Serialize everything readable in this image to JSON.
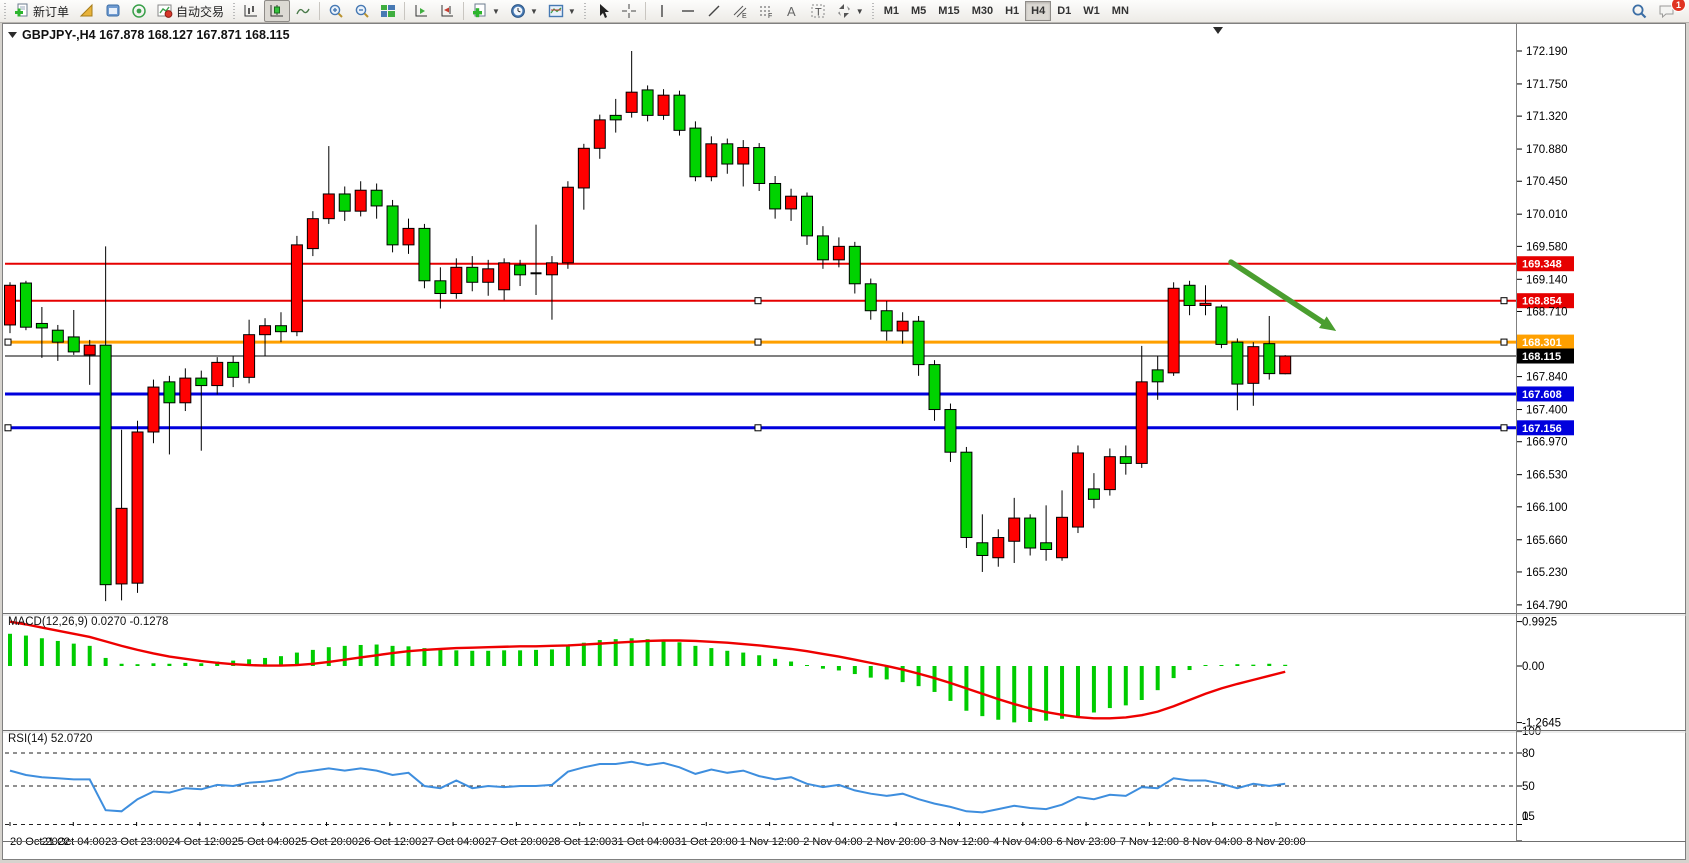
{
  "toolbar": {
    "new_order_label": "新订单",
    "auto_trading_label": "自动交易",
    "icons": [
      "new-order-icon",
      "market-watch-icon",
      "navigator-icon",
      "signals-icon",
      "auto-trading-icon",
      "bar-chart-icon",
      "candle-chart-icon",
      "line-chart-icon",
      "zoom-in-icon",
      "zoom-out-icon",
      "tile-windows-icon",
      "auto-scroll-icon",
      "chart-shift-icon",
      "indicators-icon",
      "periods-clock-icon",
      "templates-icon",
      "cursor-icon",
      "crosshair-icon",
      "vertical-line-icon",
      "horizontal-line-icon",
      "trendline-icon",
      "channel-icon",
      "fibonacci-icon",
      "text-icon",
      "label-icon",
      "arrows-icon",
      "search-icon",
      "chat-icon"
    ],
    "timeframes": [
      "M1",
      "M5",
      "M15",
      "M30",
      "H1",
      "H4",
      "D1",
      "W1",
      "MN"
    ],
    "active_timeframe": "H4",
    "chat_badge": "1"
  },
  "chart": {
    "title": "GBPJPY-,H4  167.878 168.127 167.871 168.115",
    "symbol": "GBPJPY-",
    "period": "H4",
    "open": "167.878",
    "high": "168.127",
    "low": "167.871",
    "close": "168.115"
  },
  "chart_data": {
    "type": "candlestick",
    "symbol": "GBPJPY-",
    "timeframe": "H4",
    "bull_color": "#ff0000",
    "bear_color": "#00d300",
    "outline_color": "#000000",
    "price_axis_ticks": [
      172.19,
      171.75,
      171.32,
      170.88,
      170.45,
      170.01,
      169.58,
      169.14,
      168.71,
      167.84,
      167.4,
      166.97,
      166.53,
      166.1,
      165.66,
      165.23,
      164.79
    ],
    "candles": [
      [
        168.53,
        169.1,
        168.42,
        169.06
      ],
      [
        169.09,
        169.12,
        168.46,
        168.5
      ],
      [
        168.55,
        168.77,
        168.09,
        168.49
      ],
      [
        168.46,
        168.53,
        168.05,
        168.3
      ],
      [
        168.37,
        168.73,
        168.13,
        168.17
      ],
      [
        168.13,
        168.33,
        167.73,
        168.26
      ],
      [
        168.26,
        169.58,
        164.84,
        165.06
      ],
      [
        165.07,
        167.13,
        164.85,
        166.08
      ],
      [
        165.08,
        167.25,
        164.95,
        167.1
      ],
      [
        167.1,
        167.8,
        166.95,
        167.7
      ],
      [
        167.77,
        167.85,
        166.8,
        167.49
      ],
      [
        167.49,
        167.95,
        167.38,
        167.82
      ],
      [
        167.82,
        167.92,
        166.85,
        167.72
      ],
      [
        167.72,
        168.1,
        167.6,
        168.03
      ],
      [
        168.03,
        168.12,
        167.7,
        167.83
      ],
      [
        167.83,
        168.6,
        167.75,
        168.4
      ],
      [
        168.4,
        168.62,
        168.12,
        168.52
      ],
      [
        168.52,
        168.7,
        168.3,
        168.44
      ],
      [
        168.44,
        169.72,
        168.38,
        169.6
      ],
      [
        169.55,
        170.05,
        169.45,
        169.95
      ],
      [
        169.95,
        170.92,
        169.88,
        170.28
      ],
      [
        170.28,
        170.38,
        169.92,
        170.05
      ],
      [
        170.05,
        170.45,
        169.98,
        170.33
      ],
      [
        170.33,
        170.42,
        169.95,
        170.12
      ],
      [
        170.12,
        170.2,
        169.5,
        169.6
      ],
      [
        169.6,
        169.95,
        169.48,
        169.82
      ],
      [
        169.82,
        169.88,
        169.02,
        169.12
      ],
      [
        169.12,
        169.3,
        168.75,
        168.95
      ],
      [
        168.95,
        169.42,
        168.88,
        169.3
      ],
      [
        169.3,
        169.45,
        168.98,
        169.1
      ],
      [
        169.1,
        169.4,
        168.92,
        169.28
      ],
      [
        169.0,
        169.42,
        168.86,
        169.36
      ],
      [
        169.33,
        169.4,
        169.05,
        169.2
      ],
      [
        169.22,
        169.87,
        168.93,
        169.2
      ],
      [
        169.2,
        169.45,
        168.6,
        169.36
      ],
      [
        169.36,
        170.45,
        169.28,
        170.37
      ],
      [
        170.36,
        170.95,
        170.07,
        170.89
      ],
      [
        170.89,
        171.34,
        170.75,
        171.27
      ],
      [
        171.33,
        171.55,
        171.1,
        171.27
      ],
      [
        171.37,
        172.19,
        171.3,
        171.64
      ],
      [
        171.67,
        171.73,
        171.25,
        171.33
      ],
      [
        171.33,
        171.68,
        171.27,
        171.6
      ],
      [
        171.6,
        171.66,
        171.06,
        171.13
      ],
      [
        171.16,
        171.25,
        170.45,
        170.51
      ],
      [
        170.51,
        171.05,
        170.45,
        170.95
      ],
      [
        170.95,
        171.02,
        170.55,
        170.68
      ],
      [
        170.68,
        171.0,
        170.38,
        170.9
      ],
      [
        170.9,
        170.96,
        170.32,
        170.42
      ],
      [
        170.42,
        170.52,
        169.95,
        170.08
      ],
      [
        170.08,
        170.35,
        169.92,
        170.25
      ],
      [
        170.25,
        170.3,
        169.6,
        169.72
      ],
      [
        169.72,
        169.85,
        169.28,
        169.4
      ],
      [
        169.4,
        169.7,
        169.3,
        169.58
      ],
      [
        169.58,
        169.64,
        168.95,
        169.08
      ],
      [
        169.08,
        169.15,
        168.6,
        168.72
      ],
      [
        168.72,
        168.85,
        168.32,
        168.45
      ],
      [
        168.45,
        168.7,
        168.28,
        168.58
      ],
      [
        168.58,
        168.65,
        167.85,
        168.0
      ],
      [
        168.0,
        168.06,
        167.25,
        167.4
      ],
      [
        167.4,
        167.48,
        166.7,
        166.83
      ],
      [
        166.83,
        166.9,
        165.55,
        165.69
      ],
      [
        165.62,
        166.0,
        165.23,
        165.45
      ],
      [
        165.42,
        165.8,
        165.3,
        165.69
      ],
      [
        165.64,
        166.22,
        165.35,
        165.95
      ],
      [
        165.95,
        166.0,
        165.45,
        165.55
      ],
      [
        165.62,
        166.12,
        165.38,
        165.53
      ],
      [
        165.42,
        166.32,
        165.38,
        165.96
      ],
      [
        165.83,
        166.92,
        165.75,
        166.82
      ],
      [
        166.34,
        166.55,
        166.08,
        166.2
      ],
      [
        166.33,
        166.88,
        166.25,
        166.77
      ],
      [
        166.77,
        166.92,
        166.53,
        166.68
      ],
      [
        166.68,
        168.25,
        166.62,
        167.77
      ],
      [
        167.93,
        168.12,
        167.53,
        167.77
      ],
      [
        167.89,
        169.1,
        167.85,
        169.02
      ],
      [
        169.06,
        169.12,
        168.66,
        168.79
      ],
      [
        168.79,
        169.06,
        168.66,
        168.82
      ],
      [
        168.77,
        168.8,
        168.22,
        168.27
      ],
      [
        168.3,
        168.35,
        167.39,
        167.74
      ],
      [
        167.75,
        168.3,
        167.45,
        168.24
      ],
      [
        168.28,
        168.65,
        167.8,
        167.88
      ],
      [
        167.878,
        168.127,
        167.871,
        168.115
      ]
    ],
    "hlines": [
      {
        "price": 169.348,
        "color": "#e60000",
        "width": 2,
        "tag": "169.348",
        "selected": false
      },
      {
        "price": 168.854,
        "color": "#e60000",
        "width": 2,
        "tag": "168.854",
        "selected": true
      },
      {
        "price": 168.301,
        "color": "#ffa000",
        "width": 3,
        "tag": "168.301",
        "selected": true
      },
      {
        "price": 168.115,
        "color": "#000000",
        "width": 1,
        "tag": "168.115",
        "selected": false
      },
      {
        "price": 167.608,
        "color": "#0000dd",
        "width": 3,
        "tag": "167.608",
        "selected": false
      },
      {
        "price": 167.156,
        "color": "#0000dd",
        "width": 3,
        "tag": "167.156",
        "selected": true
      }
    ],
    "current_price": 168.115,
    "arrow_annotation": {
      "from_index": 76.6,
      "from_price": 169.37,
      "to_index": 83.2,
      "to_price": 168.45,
      "color": "#4a9e2f"
    },
    "macd": {
      "label": "MACD(12,26,9) 0.0270 -0.1278",
      "params": "12,26,9",
      "value": 0.027,
      "signal_value": -0.1278,
      "axis_labels": [
        0.9925,
        0.0,
        -1.2645
      ],
      "histogram_color": "#00cc00",
      "signal_color": "#ee0000",
      "histogram": [
        0.72,
        0.68,
        0.62,
        0.56,
        0.5,
        0.45,
        0.18,
        0.05,
        0.04,
        0.06,
        0.05,
        0.07,
        0.06,
        0.1,
        0.12,
        0.15,
        0.18,
        0.22,
        0.3,
        0.36,
        0.42,
        0.45,
        0.47,
        0.48,
        0.45,
        0.44,
        0.4,
        0.36,
        0.35,
        0.34,
        0.34,
        0.35,
        0.35,
        0.36,
        0.37,
        0.44,
        0.52,
        0.58,
        0.6,
        0.62,
        0.6,
        0.58,
        0.53,
        0.45,
        0.4,
        0.34,
        0.3,
        0.24,
        0.16,
        0.1,
        0.02,
        -0.06,
        -0.1,
        -0.18,
        -0.26,
        -0.3,
        -0.36,
        -0.45,
        -0.58,
        -0.78,
        -1.0,
        -1.12,
        -1.2,
        -1.26,
        -1.25,
        -1.22,
        -1.18,
        -1.12,
        -1.04,
        -0.94,
        -0.88,
        -0.76,
        -0.54,
        -0.27,
        -0.09,
        -0.02,
        0.02,
        0.04,
        0.03,
        0.05,
        0.027
      ],
      "signal": [
        0.99,
        0.93,
        0.86,
        0.79,
        0.72,
        0.65,
        0.55,
        0.45,
        0.36,
        0.28,
        0.21,
        0.16,
        0.11,
        0.07,
        0.04,
        0.02,
        0.01,
        0.01,
        0.02,
        0.05,
        0.09,
        0.14,
        0.19,
        0.24,
        0.29,
        0.33,
        0.36,
        0.38,
        0.4,
        0.41,
        0.42,
        0.43,
        0.44,
        0.44,
        0.45,
        0.46,
        0.48,
        0.5,
        0.52,
        0.54,
        0.56,
        0.57,
        0.57,
        0.56,
        0.54,
        0.52,
        0.49,
        0.46,
        0.42,
        0.38,
        0.33,
        0.27,
        0.21,
        0.14,
        0.07,
        0.0,
        -0.08,
        -0.17,
        -0.27,
        -0.38,
        -0.5,
        -0.62,
        -0.74,
        -0.85,
        -0.95,
        -1.03,
        -1.09,
        -1.14,
        -1.17,
        -1.17,
        -1.15,
        -1.1,
        -1.02,
        -0.9,
        -0.76,
        -0.62,
        -0.5,
        -0.4,
        -0.31,
        -0.22,
        -0.128
      ]
    },
    "rsi": {
      "label": "RSI(14) 52.0720",
      "period": 14,
      "value": 52.072,
      "line_color": "#3e8ede",
      "levels": [
        80,
        50,
        15
      ],
      "axis_labels": [
        100,
        80,
        50,
        15,
        0
      ],
      "values": [
        64,
        60,
        58,
        57,
        56,
        56,
        28,
        27,
        38,
        45,
        44,
        48,
        47,
        51,
        50,
        53,
        54,
        56,
        62,
        64,
        66,
        64,
        66,
        64,
        60,
        62,
        50,
        48,
        55,
        48,
        50,
        49,
        50,
        50,
        51,
        63,
        67,
        70,
        70,
        72,
        69,
        71,
        67,
        61,
        65,
        62,
        64,
        59,
        56,
        58,
        52,
        49,
        51,
        46,
        43,
        41,
        43,
        38,
        34,
        31,
        27,
        26,
        29,
        32,
        30,
        29,
        33,
        40,
        38,
        42,
        41,
        49,
        48,
        57,
        55,
        55,
        52,
        48,
        52,
        50,
        52.07
      ]
    },
    "x_labels": [
      "20 Oct 2022",
      "21 Oct 04:00",
      "23 Oct 23:00",
      "24 Oct 12:00",
      "25 Oct 04:00",
      "25 Oct 20:00",
      "26 Oct 12:00",
      "27 Oct 04:00",
      "27 Oct 20:00",
      "28 Oct 12:00",
      "31 Oct 04:00",
      "31 Oct 20:00",
      "1 Nov 12:00",
      "2 Nov 04:00",
      "2 Nov 20:00",
      "3 Nov 12:00",
      "4 Nov 04:00",
      "6 Nov 23:00",
      "7 Nov 12:00",
      "8 Nov 04:00",
      "8 Nov 20:00"
    ]
  }
}
